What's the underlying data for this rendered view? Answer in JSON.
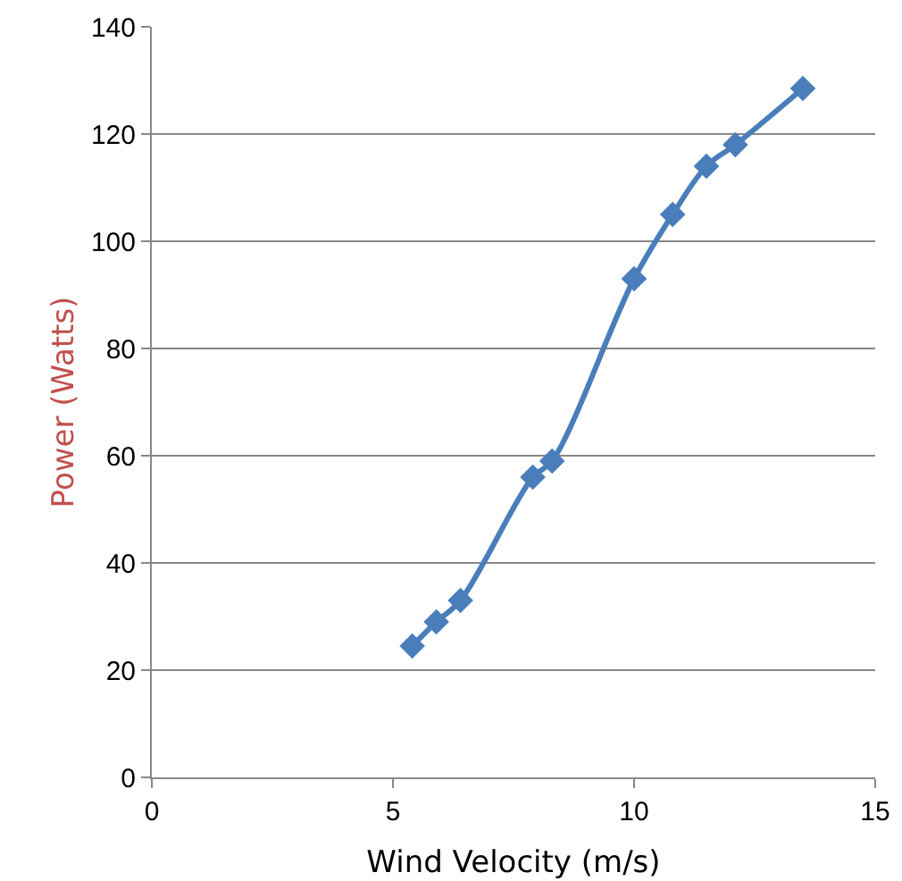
{
  "chart_data": {
    "type": "line",
    "xlabel": "Wind Velocity (m/s)",
    "ylabel": "Power (Watts)",
    "x": [
      5.4,
      5.9,
      6.4,
      7.9,
      8.3,
      10,
      10.8,
      11.5,
      12.1,
      13.5
    ],
    "series": [
      {
        "color": "#4a7ebb",
        "values": [
          24.5,
          29,
          33,
          56,
          59,
          93,
          105,
          114,
          118,
          128.5
        ]
      }
    ],
    "xlim": [
      0,
      15
    ],
    "xticks": [
      0,
      5,
      10,
      15
    ],
    "ylim": [
      0,
      140
    ],
    "yticks": [
      0,
      20,
      40,
      60,
      80,
      100,
      120,
      140
    ],
    "grid": "y",
    "marker": "diamond",
    "line_style": "solid",
    "legend": false
  }
}
